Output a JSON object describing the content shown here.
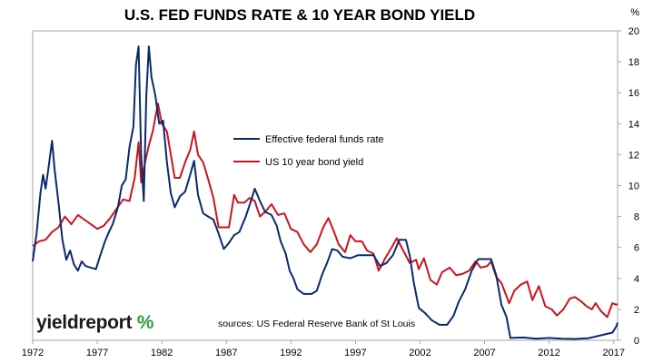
{
  "chart_data": {
    "type": "line",
    "title": "U.S. FED FUNDS RATE & 10 YEAR BOND YIELD",
    "y_unit": "%",
    "ylim": [
      0,
      20
    ],
    "y_ticks": [
      0,
      2,
      4,
      6,
      8,
      10,
      12,
      14,
      16,
      18,
      20
    ],
    "xlim": [
      1972,
      2017.3
    ],
    "x_ticks": [
      1972,
      1977,
      1982,
      1987,
      1992,
      1997,
      2002,
      2007,
      2012,
      2017
    ],
    "grid": false,
    "legend_position": "center",
    "series": [
      {
        "name": "Effective federal funds rate",
        "color": "#0b2a6b",
        "points": [
          [
            1972.0,
            5.1
          ],
          [
            1972.3,
            6.9
          ],
          [
            1972.6,
            9.5
          ],
          [
            1972.8,
            10.7
          ],
          [
            1973.0,
            9.8
          ],
          [
            1973.2,
            11.0
          ],
          [
            1973.5,
            12.9
          ],
          [
            1973.7,
            11.0
          ],
          [
            1974.0,
            8.9
          ],
          [
            1974.3,
            6.5
          ],
          [
            1974.6,
            5.2
          ],
          [
            1974.9,
            5.8
          ],
          [
            1975.2,
            4.9
          ],
          [
            1975.5,
            4.5
          ],
          [
            1975.8,
            5.1
          ],
          [
            1976.1,
            4.8
          ],
          [
            1976.5,
            4.7
          ],
          [
            1976.9,
            4.6
          ],
          [
            1977.2,
            5.4
          ],
          [
            1977.6,
            6.4
          ],
          [
            1977.9,
            7.0
          ],
          [
            1978.2,
            7.5
          ],
          [
            1978.6,
            8.6
          ],
          [
            1978.9,
            10.0
          ],
          [
            1979.2,
            10.4
          ],
          [
            1979.5,
            12.5
          ],
          [
            1979.8,
            13.8
          ],
          [
            1980.0,
            17.8
          ],
          [
            1980.2,
            19.0
          ],
          [
            1980.4,
            12.0
          ],
          [
            1980.6,
            9.0
          ],
          [
            1980.8,
            15.8
          ],
          [
            1981.0,
            19.0
          ],
          [
            1981.2,
            17.0
          ],
          [
            1981.5,
            15.8
          ],
          [
            1981.8,
            14.0
          ],
          [
            1982.1,
            14.2
          ],
          [
            1982.4,
            11.5
          ],
          [
            1982.7,
            9.5
          ],
          [
            1983.0,
            8.6
          ],
          [
            1983.4,
            9.3
          ],
          [
            1983.8,
            9.6
          ],
          [
            1984.2,
            10.7
          ],
          [
            1984.5,
            11.6
          ],
          [
            1984.8,
            9.4
          ],
          [
            1985.2,
            8.2
          ],
          [
            1985.6,
            8.0
          ],
          [
            1986.0,
            7.8
          ],
          [
            1986.4,
            6.9
          ],
          [
            1986.8,
            5.9
          ],
          [
            1987.2,
            6.3
          ],
          [
            1987.6,
            6.8
          ],
          [
            1988.0,
            7.0
          ],
          [
            1988.5,
            8.0
          ],
          [
            1988.9,
            9.0
          ],
          [
            1989.2,
            9.8
          ],
          [
            1989.6,
            9.0
          ],
          [
            1990.0,
            8.3
          ],
          [
            1990.5,
            8.1
          ],
          [
            1990.9,
            7.4
          ],
          [
            1991.2,
            6.4
          ],
          [
            1991.6,
            5.6
          ],
          [
            1991.9,
            4.5
          ],
          [
            1992.2,
            4.0
          ],
          [
            1992.5,
            3.3
          ],
          [
            1993.0,
            3.0
          ],
          [
            1993.6,
            3.0
          ],
          [
            1994.0,
            3.2
          ],
          [
            1994.4,
            4.2
          ],
          [
            1994.8,
            5.0
          ],
          [
            1995.2,
            5.9
          ],
          [
            1995.6,
            5.8
          ],
          [
            1996.0,
            5.4
          ],
          [
            1996.6,
            5.3
          ],
          [
            1997.2,
            5.5
          ],
          [
            1997.8,
            5.5
          ],
          [
            1998.4,
            5.5
          ],
          [
            1998.9,
            4.8
          ],
          [
            1999.4,
            5.0
          ],
          [
            1999.9,
            5.5
          ],
          [
            2000.4,
            6.5
          ],
          [
            2000.9,
            6.5
          ],
          [
            2001.2,
            5.5
          ],
          [
            2001.5,
            3.8
          ],
          [
            2001.9,
            2.1
          ],
          [
            2002.4,
            1.75
          ],
          [
            2002.9,
            1.3
          ],
          [
            2003.5,
            1.0
          ],
          [
            2004.1,
            1.0
          ],
          [
            2004.6,
            1.6
          ],
          [
            2005.0,
            2.5
          ],
          [
            2005.5,
            3.3
          ],
          [
            2006.0,
            4.5
          ],
          [
            2006.5,
            5.25
          ],
          [
            2007.0,
            5.25
          ],
          [
            2007.5,
            5.25
          ],
          [
            2007.9,
            4.2
          ],
          [
            2008.3,
            2.3
          ],
          [
            2008.7,
            1.5
          ],
          [
            2009.0,
            0.15
          ],
          [
            2010.0,
            0.18
          ],
          [
            2011.0,
            0.1
          ],
          [
            2012.0,
            0.15
          ],
          [
            2013.0,
            0.1
          ],
          [
            2014.0,
            0.09
          ],
          [
            2015.0,
            0.13
          ],
          [
            2015.9,
            0.3
          ],
          [
            2016.3,
            0.38
          ],
          [
            2016.9,
            0.5
          ],
          [
            2017.2,
            0.9
          ],
          [
            2017.3,
            1.15
          ]
        ]
      },
      {
        "name": "US 10 year bond yield",
        "color": "#c8161d",
        "points": [
          [
            1972.0,
            6.1
          ],
          [
            1972.5,
            6.4
          ],
          [
            1973.0,
            6.5
          ],
          [
            1973.5,
            7.0
          ],
          [
            1974.0,
            7.3
          ],
          [
            1974.5,
            8.0
          ],
          [
            1975.0,
            7.5
          ],
          [
            1975.5,
            8.1
          ],
          [
            1976.0,
            7.8
          ],
          [
            1976.5,
            7.5
          ],
          [
            1977.0,
            7.2
          ],
          [
            1977.5,
            7.4
          ],
          [
            1978.0,
            7.9
          ],
          [
            1978.5,
            8.5
          ],
          [
            1979.0,
            9.1
          ],
          [
            1979.5,
            9.0
          ],
          [
            1979.9,
            10.5
          ],
          [
            1980.2,
            12.8
          ],
          [
            1980.4,
            10.2
          ],
          [
            1980.7,
            11.5
          ],
          [
            1981.0,
            12.6
          ],
          [
            1981.3,
            13.5
          ],
          [
            1981.7,
            15.3
          ],
          [
            1982.0,
            14.0
          ],
          [
            1982.4,
            13.5
          ],
          [
            1982.7,
            12.0
          ],
          [
            1983.0,
            10.5
          ],
          [
            1983.4,
            10.5
          ],
          [
            1983.8,
            11.5
          ],
          [
            1984.2,
            12.3
          ],
          [
            1984.5,
            13.5
          ],
          [
            1984.8,
            12.0
          ],
          [
            1985.2,
            11.5
          ],
          [
            1985.6,
            10.4
          ],
          [
            1986.0,
            9.2
          ],
          [
            1986.4,
            7.3
          ],
          [
            1986.8,
            7.3
          ],
          [
            1987.2,
            7.3
          ],
          [
            1987.6,
            9.4
          ],
          [
            1987.9,
            8.9
          ],
          [
            1988.4,
            8.9
          ],
          [
            1988.8,
            9.2
          ],
          [
            1989.2,
            9.0
          ],
          [
            1989.6,
            8.0
          ],
          [
            1990.0,
            8.3
          ],
          [
            1990.5,
            8.8
          ],
          [
            1991.0,
            8.1
          ],
          [
            1991.5,
            8.2
          ],
          [
            1992.0,
            7.2
          ],
          [
            1992.5,
            7.0
          ],
          [
            1993.0,
            6.2
          ],
          [
            1993.5,
            5.7
          ],
          [
            1994.0,
            6.2
          ],
          [
            1994.5,
            7.3
          ],
          [
            1994.9,
            7.9
          ],
          [
            1995.3,
            7.1
          ],
          [
            1995.7,
            6.2
          ],
          [
            1996.2,
            5.7
          ],
          [
            1996.6,
            6.8
          ],
          [
            1997.0,
            6.4
          ],
          [
            1997.5,
            6.4
          ],
          [
            1997.9,
            5.8
          ],
          [
            1998.4,
            5.6
          ],
          [
            1998.8,
            4.5
          ],
          [
            1999.3,
            5.3
          ],
          [
            1999.8,
            6.0
          ],
          [
            2000.2,
            6.6
          ],
          [
            2000.7,
            5.8
          ],
          [
            2001.2,
            5.0
          ],
          [
            2001.7,
            5.2
          ],
          [
            2001.9,
            4.6
          ],
          [
            2002.3,
            5.3
          ],
          [
            2002.8,
            3.9
          ],
          [
            2003.3,
            3.6
          ],
          [
            2003.7,
            4.4
          ],
          [
            2004.3,
            4.7
          ],
          [
            2004.8,
            4.2
          ],
          [
            2005.3,
            4.3
          ],
          [
            2005.8,
            4.5
          ],
          [
            2006.3,
            5.1
          ],
          [
            2006.7,
            4.7
          ],
          [
            2007.2,
            4.8
          ],
          [
            2007.5,
            5.1
          ],
          [
            2007.9,
            4.1
          ],
          [
            2008.3,
            3.7
          ],
          [
            2008.9,
            2.4
          ],
          [
            2009.3,
            3.2
          ],
          [
            2009.8,
            3.6
          ],
          [
            2010.3,
            3.8
          ],
          [
            2010.7,
            2.6
          ],
          [
            2011.2,
            3.5
          ],
          [
            2011.7,
            2.2
          ],
          [
            2012.2,
            2.0
          ],
          [
            2012.6,
            1.6
          ],
          [
            2013.1,
            2.0
          ],
          [
            2013.6,
            2.7
          ],
          [
            2014.0,
            2.8
          ],
          [
            2014.5,
            2.5
          ],
          [
            2014.9,
            2.2
          ],
          [
            2015.3,
            2.0
          ],
          [
            2015.6,
            2.4
          ],
          [
            2016.0,
            1.9
          ],
          [
            2016.5,
            1.5
          ],
          [
            2016.9,
            2.4
          ],
          [
            2017.2,
            2.3
          ],
          [
            2017.3,
            2.35
          ]
        ]
      }
    ]
  },
  "source_text": "sources: US Federal Reserve Bank of St Louis",
  "logo": {
    "word1": "yield",
    "word2": "report",
    "symbol": "%"
  }
}
